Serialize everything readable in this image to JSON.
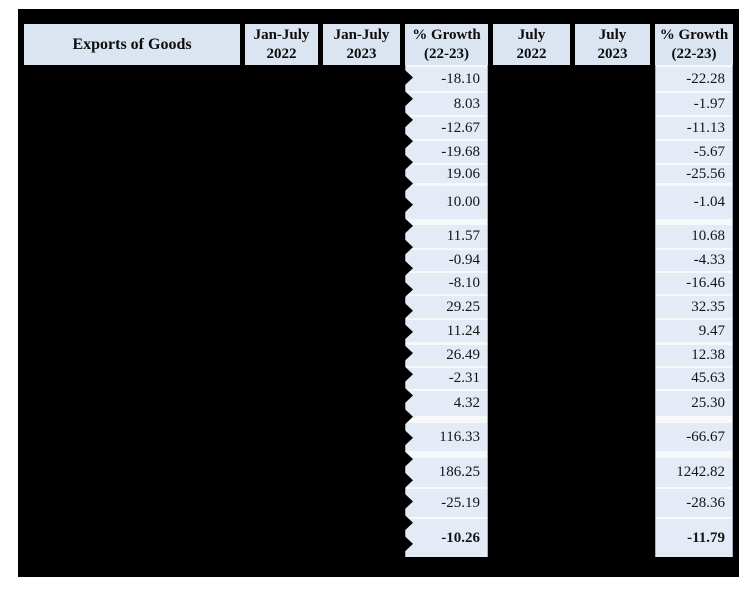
{
  "table": {
    "header": {
      "col1": "Exports of Goods",
      "col2": "Jan-July\n2022",
      "col3": "Jan-July\n2023",
      "col4": "% Growth\n(22-23)",
      "col5": "July\n2022",
      "col6": "July\n2023",
      "col7": "% Growth\n(22-23)"
    },
    "rows": [
      {
        "jan_july_growth": "-18.10",
        "july_growth": "-22.28"
      },
      {
        "jan_july_growth": "8.03",
        "july_growth": "-1.97"
      },
      {
        "jan_july_growth": "-12.67",
        "july_growth": "-11.13"
      },
      {
        "jan_july_growth": "-19.68",
        "july_growth": "-5.67"
      },
      {
        "jan_july_growth": "19.06",
        "july_growth": "-25.56"
      },
      {
        "jan_july_growth": "10.00",
        "july_growth": "-1.04"
      },
      {
        "jan_july_growth": "11.57",
        "july_growth": "10.68"
      },
      {
        "jan_july_growth": "-0.94",
        "july_growth": "-4.33"
      },
      {
        "jan_july_growth": "-8.10",
        "july_growth": "-16.46"
      },
      {
        "jan_july_growth": "29.25",
        "july_growth": "32.35"
      },
      {
        "jan_july_growth": "11.24",
        "july_growth": "9.47"
      },
      {
        "jan_july_growth": "26.49",
        "july_growth": "12.38"
      },
      {
        "jan_july_growth": "-2.31",
        "july_growth": "45.63"
      },
      {
        "jan_july_growth": "4.32",
        "july_growth": "25.30"
      },
      {
        "jan_july_growth": "116.33",
        "july_growth": "-66.67"
      },
      {
        "jan_july_growth": "186.25",
        "july_growth": "1242.82"
      },
      {
        "jan_july_growth": "-25.19",
        "july_growth": "-28.36"
      },
      {
        "jan_july_growth": "-10.26",
        "july_growth": "-11.79",
        "bold": true
      }
    ]
  },
  "colors": {
    "header_bg": "#dbe5f1",
    "cell_bg": "#e4eaf6",
    "redaction": "#000000",
    "page_bg": "#ffffff"
  }
}
